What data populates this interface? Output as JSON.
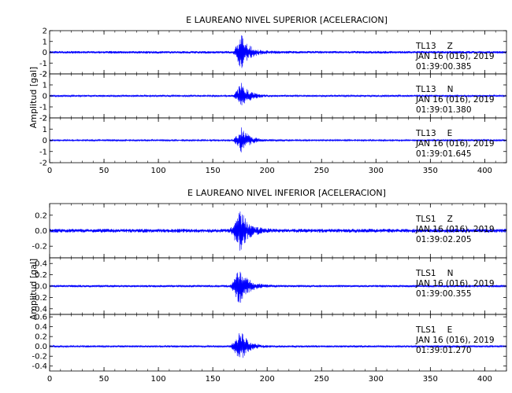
{
  "chart_data": [
    {
      "type": "line",
      "title": "E LAUREANO NIVEL SUPERIOR [ACELERACION]",
      "ylabel": "Amplitud [gal]",
      "xlim": [
        0,
        420
      ],
      "x_ticks": [
        "0",
        "50",
        "100",
        "150",
        "200",
        "250",
        "300",
        "350",
        "400"
      ],
      "line_color": "#0000ff",
      "grid": false,
      "series": [
        {
          "name": "TL13 Z",
          "station": "TL13",
          "component": "Z",
          "date": "JAN 16 (016), 2019",
          "time": "01:39:00.385",
          "ylim": [
            -2,
            2
          ],
          "y_ticks": [
            "-2",
            "-1",
            "0",
            "1",
            "2"
          ],
          "noise": 0.12,
          "peak": 1.75,
          "event_onset": 168,
          "event_peak": 176
        },
        {
          "name": "TL13 N",
          "station": "TL13",
          "component": "N",
          "date": "JAN 16 (016), 2019",
          "time": "01:39:01.380",
          "ylim": [
            -2,
            2
          ],
          "y_ticks": [
            "-2",
            "-1",
            "0",
            "1",
            "2"
          ],
          "noise": 0.08,
          "peak": 1.3,
          "event_onset": 168,
          "event_peak": 176
        },
        {
          "name": "TL13 E",
          "station": "TL13",
          "component": "E",
          "date": "JAN 16 (016), 2019",
          "time": "01:39:01.645",
          "ylim": [
            -2,
            2
          ],
          "y_ticks": [
            "-2",
            "-1",
            "0",
            "1",
            "2"
          ],
          "noise": 0.07,
          "peak": 1.25,
          "event_onset": 168,
          "event_peak": 176
        }
      ]
    },
    {
      "type": "line",
      "title": "E LAUREANO NIVEL INFERIOR [ACELERACION]",
      "ylabel": "Amplitud [gal]",
      "xlim": [
        0,
        420
      ],
      "x_ticks": [
        "0",
        "50",
        "100",
        "150",
        "200",
        "250",
        "300",
        "350",
        "400"
      ],
      "line_color": "#0000ff",
      "grid": false,
      "series": [
        {
          "name": "TLS1 Z",
          "station": "TLS1",
          "component": "Z",
          "date": "JAN 16 (016), 2019",
          "time": "01:39:02.205",
          "ylim": [
            -0.35,
            0.35
          ],
          "y_ticks": [
            "-0.2",
            "0.0",
            "0.2"
          ],
          "noise": 0.025,
          "peak": 0.3,
          "event_onset": 165,
          "event_peak": 175
        },
        {
          "name": "TLS1 N",
          "station": "TLS1",
          "component": "N",
          "date": "JAN 16 (016), 2019",
          "time": "01:39:00.355",
          "ylim": [
            -0.5,
            0.5
          ],
          "y_ticks": [
            "-0.4",
            "-0.2",
            "0.0",
            "0.2",
            "0.4"
          ],
          "noise": 0.02,
          "peak": 0.38,
          "event_onset": 165,
          "event_peak": 175
        },
        {
          "name": "TLS1 E",
          "station": "TLS1",
          "component": "E",
          "date": "JAN 16 (016), 2019",
          "time": "01:39:01.270",
          "ylim": [
            -0.5,
            0.65
          ],
          "y_ticks": [
            "-0.4",
            "-0.2",
            "0.0",
            "0.2",
            "0.4",
            "0.6"
          ],
          "noise": 0.02,
          "peak": 0.35,
          "event_onset": 165,
          "event_peak": 175
        }
      ]
    }
  ]
}
